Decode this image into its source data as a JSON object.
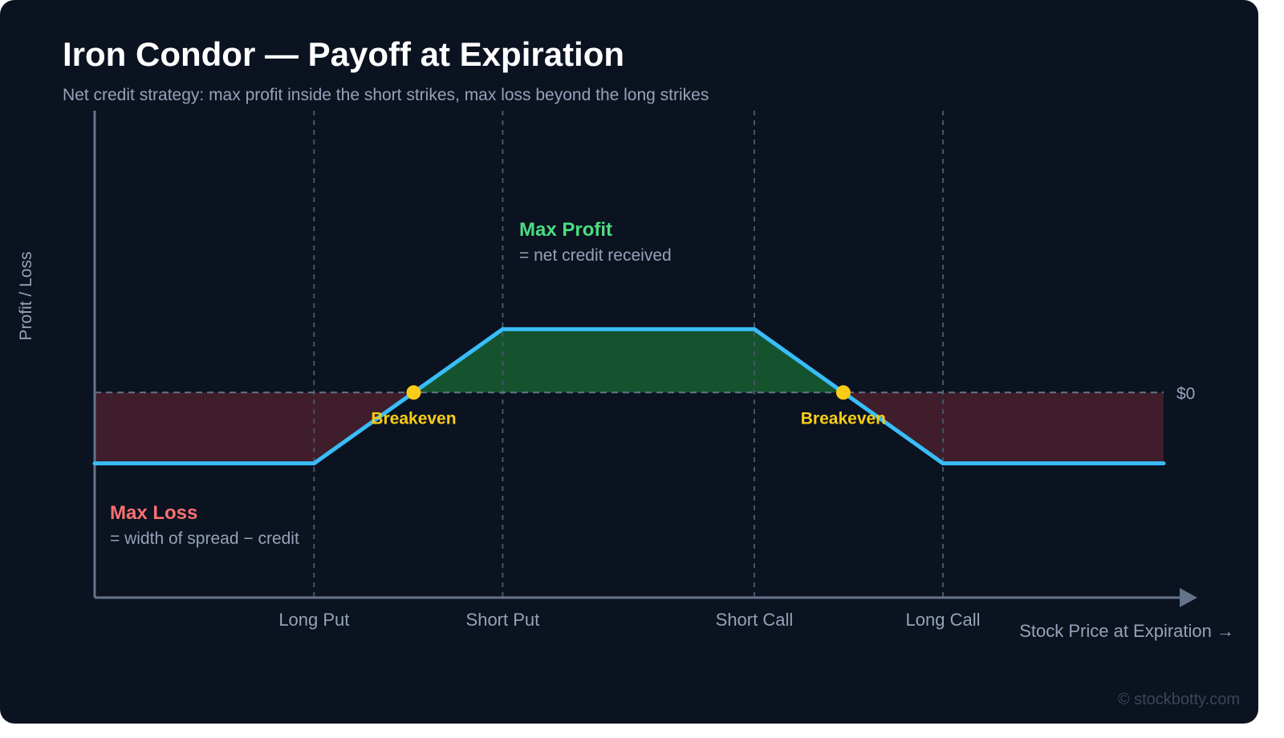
{
  "colors": {
    "background": "#0b1220",
    "payoff_line": "#38bdf8",
    "profit_fill": "#14532d",
    "loss_fill": "#3f1d2b",
    "profit_text": "#4ade80",
    "loss_text": "#f87171",
    "breakeven": "#facc15",
    "axis": "#64748b",
    "muted_text": "#94a3b8"
  },
  "watermark": "© stockbotty.com",
  "chart_data": {
    "type": "line",
    "title": "Iron Condor — Payoff at Expiration",
    "subtitle": "Net credit strategy: max profit inside the short strikes, max loss beyond the long strikes",
    "xlabel": "Stock Price at Expiration →",
    "ylabel": "Profit / Loss",
    "zero_label": "$0",
    "x": [
      0,
      1,
      2,
      3,
      4,
      5
    ],
    "y_line": [
      -1.12,
      -1.12,
      1,
      1,
      -1.12,
      -1.12
    ],
    "key_points": [
      {
        "x": 0,
        "y": -1.12
      },
      {
        "x": 1.163,
        "y": -1.12
      },
      {
        "x": 2.163,
        "y": 1
      },
      {
        "x": 3.497,
        "y": 1
      },
      {
        "x": 4.497,
        "y": -1.12
      },
      {
        "x": 5.667,
        "y": -1.12
      }
    ],
    "xlim": [
      0,
      5.667
    ],
    "ylim": [
      -3.24,
      4.45
    ],
    "strikes": [
      {
        "label": "Long Put",
        "x": 1.163
      },
      {
        "label": "Short Put",
        "x": 2.163
      },
      {
        "label": "Short Call",
        "x": 3.497
      },
      {
        "label": "Long Call",
        "x": 4.497
      }
    ],
    "breakevens": [
      {
        "label": "Breakeven",
        "x": 1.691
      },
      {
        "label": "Breakeven",
        "x": 3.969
      }
    ],
    "annotations": {
      "max_profit": {
        "title": "Max Profit",
        "subtitle": "= net credit received"
      },
      "max_loss": {
        "title": "Max Loss",
        "subtitle": "= width of spread − credit"
      }
    },
    "grid": false,
    "legend": "none"
  }
}
